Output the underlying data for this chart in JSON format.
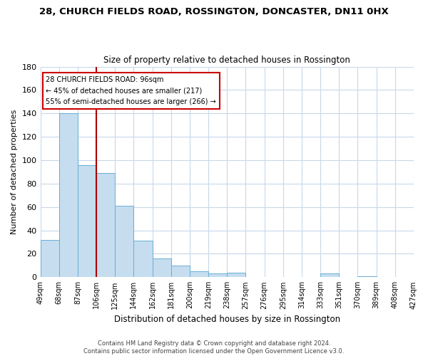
{
  "title": "28, CHURCH FIELDS ROAD, ROSSINGTON, DONCASTER, DN11 0HX",
  "subtitle": "Size of property relative to detached houses in Rossington",
  "xlabel": "Distribution of detached houses by size in Rossington",
  "ylabel": "Number of detached properties",
  "bar_values": [
    32,
    140,
    96,
    89,
    61,
    31,
    16,
    10,
    5,
    3,
    4,
    0,
    0,
    0,
    0,
    3,
    0,
    1,
    0,
    0
  ],
  "bin_labels": [
    "49sqm",
    "68sqm",
    "87sqm",
    "106sqm",
    "125sqm",
    "144sqm",
    "162sqm",
    "181sqm",
    "200sqm",
    "219sqm",
    "238sqm",
    "257sqm",
    "276sqm",
    "295sqm",
    "314sqm",
    "333sqm",
    "351sqm",
    "370sqm",
    "389sqm",
    "408sqm",
    "427sqm"
  ],
  "bar_color": "#c5ddef",
  "bar_edge_color": "#6aaed6",
  "annotation_text": "28 CHURCH FIELDS ROAD: 96sqm\n← 45% of detached houses are smaller (217)\n55% of semi-detached houses are larger (266) →",
  "vline_color": "#aa0000",
  "vline_x": 3,
  "ylim": [
    0,
    180
  ],
  "yticks": [
    0,
    20,
    40,
    60,
    80,
    100,
    120,
    140,
    160,
    180
  ],
  "footer_text": "Contains HM Land Registry data © Crown copyright and database right 2024.\nContains public sector information licensed under the Open Government Licence v3.0.",
  "background_color": "#ffffff",
  "grid_color": "#c8d8ea"
}
